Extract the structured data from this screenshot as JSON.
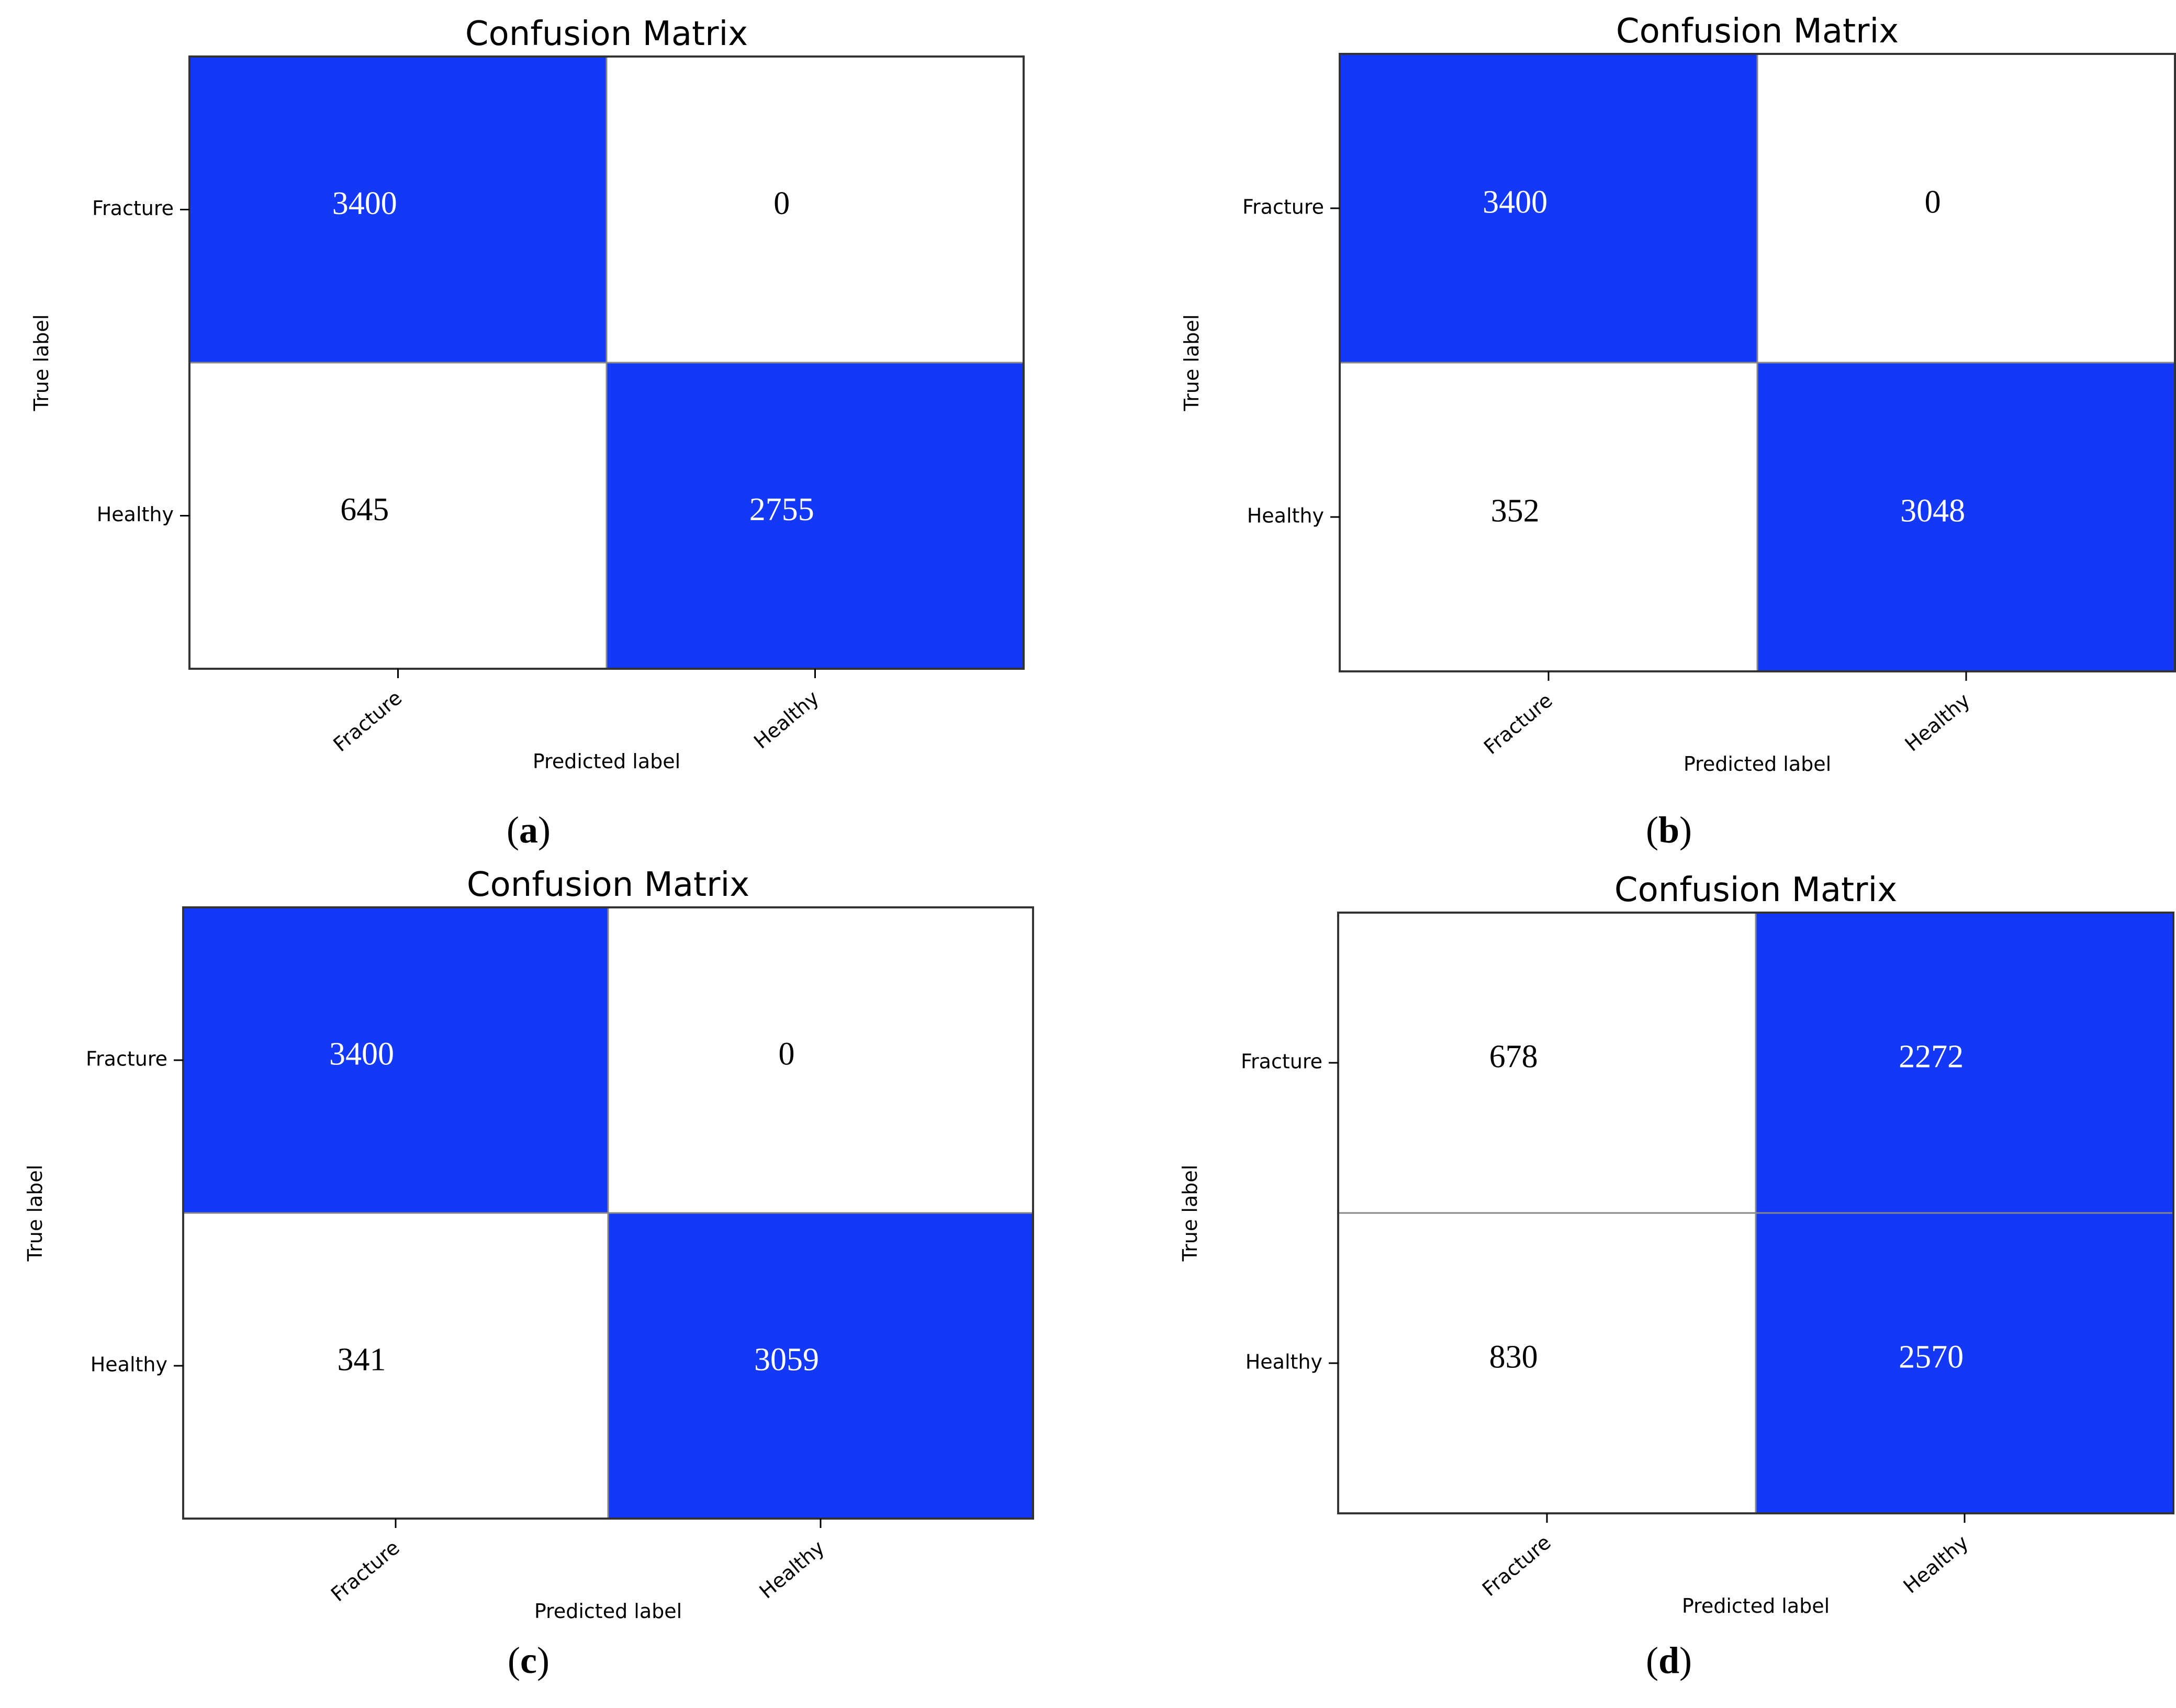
{
  "figure": {
    "panel_ids": [
      "a",
      "b",
      "c",
      "d"
    ]
  },
  "colors": {
    "high": "#1439f6",
    "low": "#ffffff",
    "text_on_high": "#ffffff",
    "text_on_low": "#000000"
  },
  "chart_data": [
    {
      "type": "heatmap",
      "panel": "a",
      "title": "Confusion Matrix",
      "xlabel": "Predicted label",
      "ylabel": "True label",
      "x_categories": [
        "Fracture",
        "Healthy"
      ],
      "y_categories": [
        "Fracture",
        "Healthy"
      ],
      "values": [
        [
          3400,
          0
        ],
        [
          645,
          2755
        ]
      ],
      "grid": false,
      "legend": "none"
    },
    {
      "type": "heatmap",
      "panel": "b",
      "title": "Confusion Matrix",
      "xlabel": "Predicted label",
      "ylabel": "True label",
      "x_categories": [
        "Fracture",
        "Healthy"
      ],
      "y_categories": [
        "Fracture",
        "Healthy"
      ],
      "values": [
        [
          3400,
          0
        ],
        [
          352,
          3048
        ]
      ],
      "grid": false,
      "legend": "none"
    },
    {
      "type": "heatmap",
      "panel": "c",
      "title": "Confusion Matrix",
      "xlabel": "Predicted label",
      "ylabel": "True label",
      "x_categories": [
        "Fracture",
        "Healthy"
      ],
      "y_categories": [
        "Fracture",
        "Healthy"
      ],
      "values": [
        [
          3400,
          0
        ],
        [
          341,
          3059
        ]
      ],
      "grid": false,
      "legend": "none"
    },
    {
      "type": "heatmap",
      "panel": "d",
      "title": "Confusion Matrix",
      "xlabel": "Predicted label",
      "ylabel": "True label",
      "x_categories": [
        "Fracture",
        "Healthy"
      ],
      "y_categories": [
        "Fracture",
        "Healthy"
      ],
      "values": [
        [
          678,
          2272
        ],
        [
          830,
          2570
        ]
      ],
      "grid": false,
      "legend": "none"
    }
  ]
}
